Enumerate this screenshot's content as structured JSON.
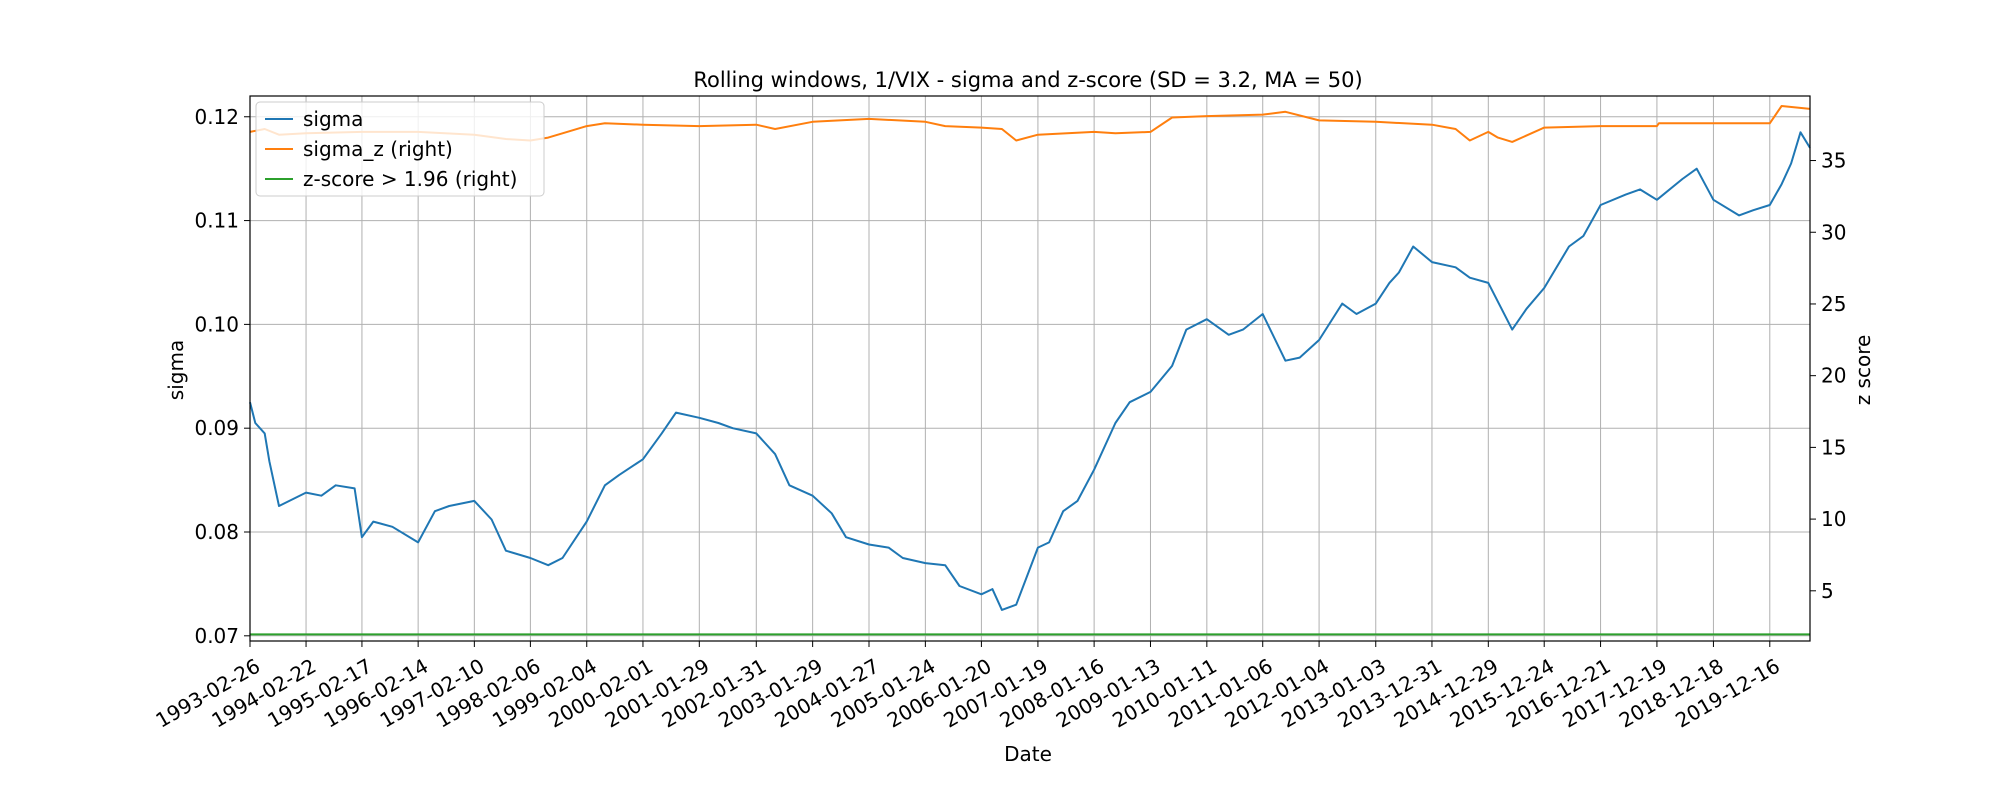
{
  "chart_data": {
    "type": "line",
    "title": "Rolling windows, 1/VIX - sigma and z-score (SD = 3.2, MA = 50)",
    "xlabel": "Date",
    "ylabel": "sigma",
    "ylabel_right": "z score",
    "grid": true,
    "legend_position": "top-left",
    "x_ticks": [
      "1993-02-26",
      "1994-02-22",
      "1995-02-17",
      "1996-02-14",
      "1997-02-10",
      "1998-02-06",
      "1999-02-04",
      "2000-02-01",
      "2001-01-29",
      "2002-01-31",
      "2003-01-29",
      "2004-01-27",
      "2005-01-24",
      "2006-01-20",
      "2007-01-19",
      "2008-01-16",
      "2009-01-13",
      "2010-01-11",
      "2011-01-06",
      "2012-01-04",
      "2013-01-03",
      "2013-12-31",
      "2014-12-29",
      "2015-12-24",
      "2016-12-21",
      "2017-12-19",
      "2018-12-18",
      "2019-12-16"
    ],
    "y_left": {
      "lim": [
        0.0695,
        0.122
      ],
      "ticks": [
        "0.07",
        "0.08",
        "0.09",
        "0.10",
        "0.11",
        "0.12"
      ]
    },
    "y_right": {
      "lim": [
        1.5,
        39.5
      ],
      "ticks": [
        "5",
        "10",
        "15",
        "20",
        "25",
        "30",
        "35"
      ]
    },
    "x_range": [
      "1993-02-26",
      "2020-08-31"
    ],
    "series": [
      {
        "name": "sigma",
        "axis": "left",
        "color": "#1f77b4",
        "x": [
          "1993-02-26",
          "1993-04-01",
          "1993-06-01",
          "1993-07-01",
          "1993-09-01",
          "1994-02-22",
          "1994-06-01",
          "1994-09-01",
          "1995-01-01",
          "1995-02-17",
          "1995-05-01",
          "1995-09-01",
          "1996-02-14",
          "1996-06-01",
          "1996-09-01",
          "1997-02-10",
          "1997-06-01",
          "1997-09-01",
          "1998-02-06",
          "1998-06-01",
          "1998-09-01",
          "1999-02-04",
          "1999-06-01",
          "1999-09-01",
          "2000-02-01",
          "2000-06-01",
          "2000-09-01",
          "2001-01-29",
          "2001-06-01",
          "2001-09-01",
          "2002-01-31",
          "2002-06-01",
          "2002-09-01",
          "2003-01-29",
          "2003-06-01",
          "2003-09-01",
          "2004-01-27",
          "2004-06-01",
          "2004-09-01",
          "2005-01-24",
          "2005-06-01",
          "2005-09-01",
          "2006-01-20",
          "2006-04-01",
          "2006-06-01",
          "2006-09-01",
          "2007-01-19",
          "2007-04-01",
          "2007-07-01",
          "2007-10-01",
          "2008-01-16",
          "2008-06-01",
          "2008-09-01",
          "2009-01-13",
          "2009-06-01",
          "2009-09-01",
          "2010-01-11",
          "2010-06-01",
          "2010-09-01",
          "2011-01-06",
          "2011-06-01",
          "2011-09-01",
          "2012-01-04",
          "2012-06-01",
          "2012-09-01",
          "2013-01-03",
          "2013-04-01",
          "2013-06-01",
          "2013-09-01",
          "2013-12-31",
          "2014-06-01",
          "2014-09-01",
          "2014-12-29",
          "2015-06-01",
          "2015-09-01",
          "2015-12-24",
          "2016-06-01",
          "2016-09-01",
          "2016-12-21",
          "2017-06-01",
          "2017-09-01",
          "2017-12-19",
          "2018-06-01",
          "2018-09-01",
          "2018-12-18",
          "2019-06-01",
          "2019-09-01",
          "2019-12-16",
          "2020-03-01",
          "2020-05-01",
          "2020-07-01",
          "2020-08-31"
        ],
        "y": [
          0.0925,
          0.0905,
          0.0895,
          0.0868,
          0.0825,
          0.0838,
          0.0835,
          0.0845,
          0.0842,
          0.0795,
          0.081,
          0.0805,
          0.079,
          0.082,
          0.0825,
          0.083,
          0.0812,
          0.0782,
          0.0775,
          0.0768,
          0.0775,
          0.081,
          0.0845,
          0.0855,
          0.087,
          0.0895,
          0.0915,
          0.091,
          0.0905,
          0.09,
          0.0895,
          0.0875,
          0.0845,
          0.0835,
          0.0818,
          0.0795,
          0.0788,
          0.0785,
          0.0775,
          0.077,
          0.0768,
          0.0748,
          0.074,
          0.0745,
          0.0725,
          0.073,
          0.0785,
          0.079,
          0.082,
          0.083,
          0.086,
          0.0905,
          0.0925,
          0.0935,
          0.096,
          0.0995,
          0.1005,
          0.099,
          0.0995,
          0.101,
          0.0965,
          0.0968,
          0.0985,
          0.102,
          0.101,
          0.102,
          0.104,
          0.105,
          0.1075,
          0.106,
          0.1055,
          0.1045,
          0.104,
          0.0995,
          0.1015,
          0.1035,
          0.1075,
          0.1085,
          0.1115,
          0.1125,
          0.113,
          0.112,
          0.114,
          0.115,
          0.112,
          0.1105,
          0.111,
          0.1115,
          0.1135,
          0.1155,
          0.1185,
          0.117
        ]
      },
      {
        "name": "sigma_z (right)",
        "axis": "right",
        "color": "#ff7f0e",
        "x": [
          "1993-02-26",
          "1993-06-01",
          "1993-09-01",
          "1994-02-22",
          "1995-02-17",
          "1996-02-14",
          "1997-02-10",
          "1997-09-01",
          "1998-02-06",
          "1998-06-01",
          "1998-09-01",
          "1999-02-04",
          "1999-06-01",
          "2000-02-01",
          "2001-01-29",
          "2002-01-31",
          "2002-06-01",
          "2003-01-29",
          "2004-01-27",
          "2005-01-24",
          "2005-06-01",
          "2006-01-20",
          "2006-06-01",
          "2006-09-01",
          "2007-01-19",
          "2008-01-16",
          "2008-06-01",
          "2009-01-13",
          "2009-06-01",
          "2010-01-11",
          "2011-01-06",
          "2011-06-01",
          "2012-01-04",
          "2013-01-03",
          "2013-12-31",
          "2014-06-01",
          "2014-09-01",
          "2014-12-29",
          "2015-03-01",
          "2015-06-01",
          "2015-12-24",
          "2016-12-21",
          "2017-12-19",
          "2018-01-01",
          "2018-12-18",
          "2019-12-16",
          "2020-03-01",
          "2020-08-31"
        ],
        "y": [
          37.0,
          37.2,
          36.8,
          36.9,
          37.0,
          37.0,
          36.8,
          36.5,
          36.4,
          36.6,
          36.9,
          37.4,
          37.6,
          37.5,
          37.4,
          37.5,
          37.2,
          37.7,
          37.9,
          37.7,
          37.4,
          37.3,
          37.2,
          36.4,
          36.8,
          37.0,
          36.9,
          37.0,
          38.0,
          38.1,
          38.2,
          38.4,
          37.8,
          37.7,
          37.5,
          37.2,
          36.4,
          37.0,
          36.6,
          36.3,
          37.3,
          37.4,
          37.4,
          37.6,
          37.6,
          37.6,
          38.8,
          38.6
        ]
      },
      {
        "name": "z-score > 1.96 (right)",
        "axis": "right",
        "color": "#2ca02c",
        "x": [
          "1993-02-26",
          "2020-08-31"
        ],
        "y": [
          1.96,
          1.96
        ]
      }
    ]
  }
}
